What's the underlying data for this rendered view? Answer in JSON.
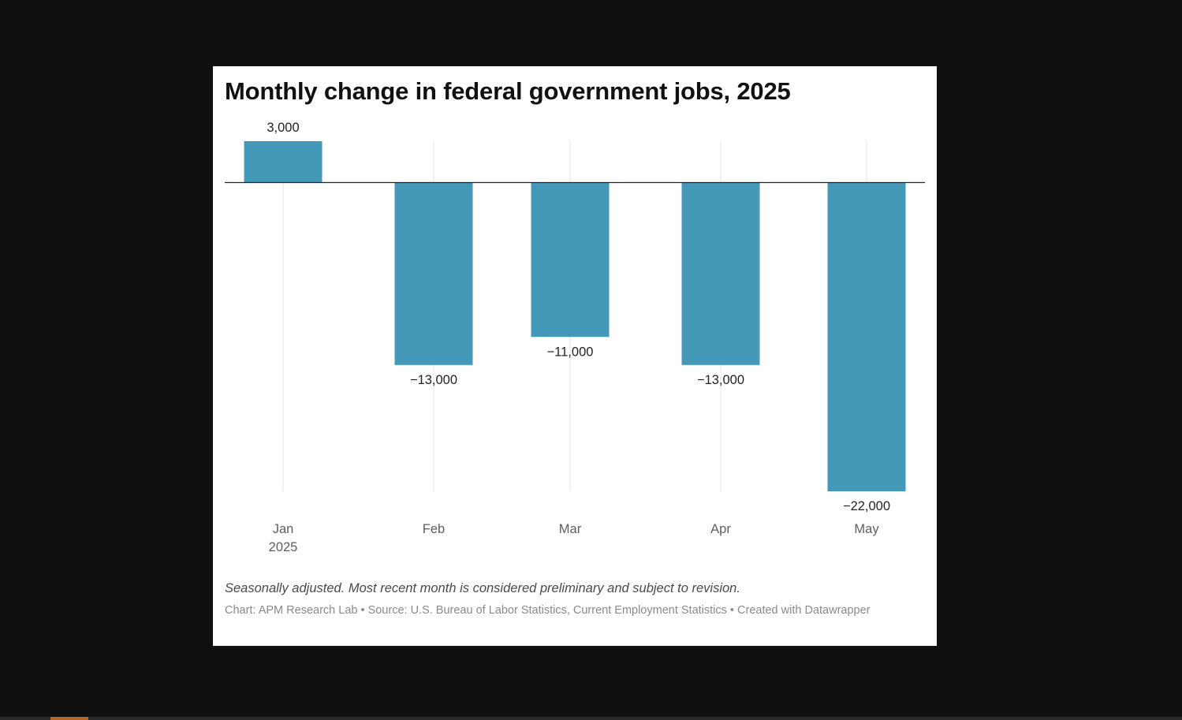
{
  "chart_data": {
    "type": "bar",
    "title": "Monthly change in federal government jobs, 2025",
    "categories": [
      "Jan",
      "Feb",
      "Mar",
      "Apr",
      "May"
    ],
    "category_sublabels": [
      "2025",
      "",
      "",
      "",
      ""
    ],
    "values": [
      3000,
      -13000,
      -11000,
      -13000,
      -22000
    ],
    "value_labels": [
      "3,000",
      "−13,000",
      "−11,000",
      "−13,000",
      "−22,000"
    ],
    "xlabel": "",
    "ylabel": "",
    "ylim": [
      -22000,
      3000
    ],
    "grid": true,
    "bar_color": "#4599b8"
  },
  "notes": "Seasonally adjusted. Most recent month is considered preliminary and subject to revision.",
  "footer": "Chart: APM Research Lab • Source: U.S. Bureau of Labor Statistics, Current Employment Statistics • Created with Datawrapper"
}
